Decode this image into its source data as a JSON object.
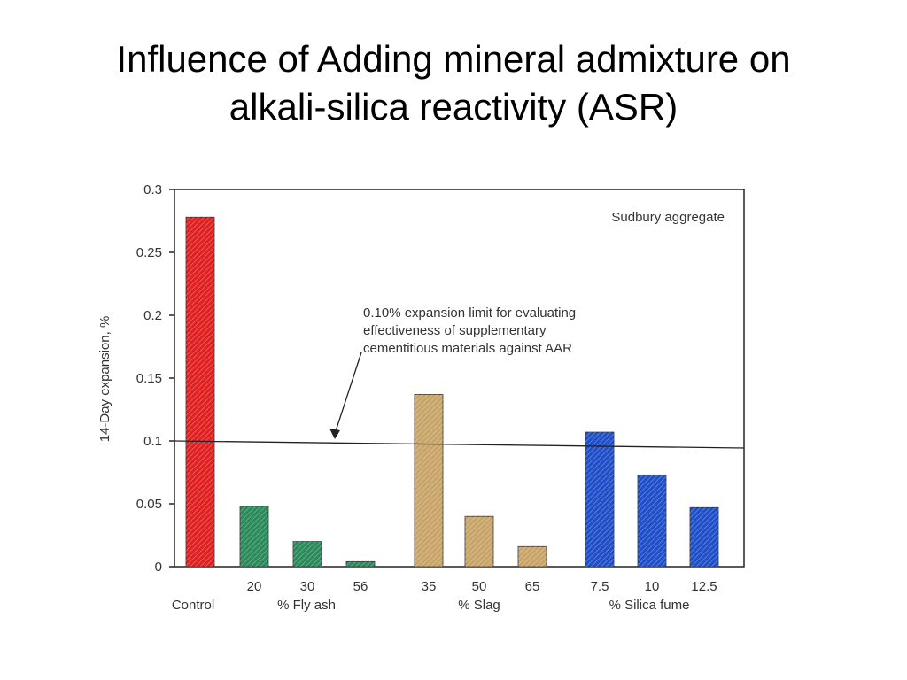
{
  "slide": {
    "title_line1": "Influence of Adding mineral admixture on",
    "title_line2": "alkali-silica reactivity (ASR)"
  },
  "chart_data": {
    "type": "bar",
    "ylabel": "14-Day expansion, %",
    "ylim": [
      0,
      0.3
    ],
    "yticks": [
      0,
      0.05,
      0.1,
      0.15,
      0.2,
      0.25,
      0.3
    ],
    "ytick_labels": [
      "0",
      "0.05",
      "0.1",
      "0.15",
      "0.2",
      "0.25",
      "0.3"
    ],
    "bars": [
      {
        "group": "Control",
        "label": "",
        "value": 0.278,
        "color": "#e02020"
      },
      {
        "group": "% Fly ash",
        "label": "20",
        "value": 0.048,
        "color": "#2a8a5a"
      },
      {
        "group": "% Fly ash",
        "label": "30",
        "value": 0.02,
        "color": "#2a8a5a"
      },
      {
        "group": "% Fly ash",
        "label": "56",
        "value": 0.004,
        "color": "#2a8a5a"
      },
      {
        "group": "% Slag",
        "label": "35",
        "value": 0.137,
        "color": "#c8a468"
      },
      {
        "group": "% Slag",
        "label": "50",
        "value": 0.04,
        "color": "#c8a468"
      },
      {
        "group": "% Slag",
        "label": "65",
        "value": 0.016,
        "color": "#c8a468"
      },
      {
        "group": "% Silica fume",
        "label": "7.5",
        "value": 0.107,
        "color": "#1f4fc8"
      },
      {
        "group": "% Silica fume",
        "label": "10",
        "value": 0.073,
        "color": "#1f4fc8"
      },
      {
        "group": "% Silica fume",
        "label": "12.5",
        "value": 0.047,
        "color": "#1f4fc8"
      }
    ],
    "group_labels": [
      "Control",
      "% Fly ash",
      "% Slag",
      "% Silica fume"
    ],
    "reference_line": {
      "value": 0.1
    },
    "annotations": {
      "corner_note": "Sudbury aggregate",
      "limit_note_lines": [
        "0.10% expansion limit for evaluating",
        "effectiveness of supplementary",
        "cementitious materials against AAR"
      ]
    }
  }
}
